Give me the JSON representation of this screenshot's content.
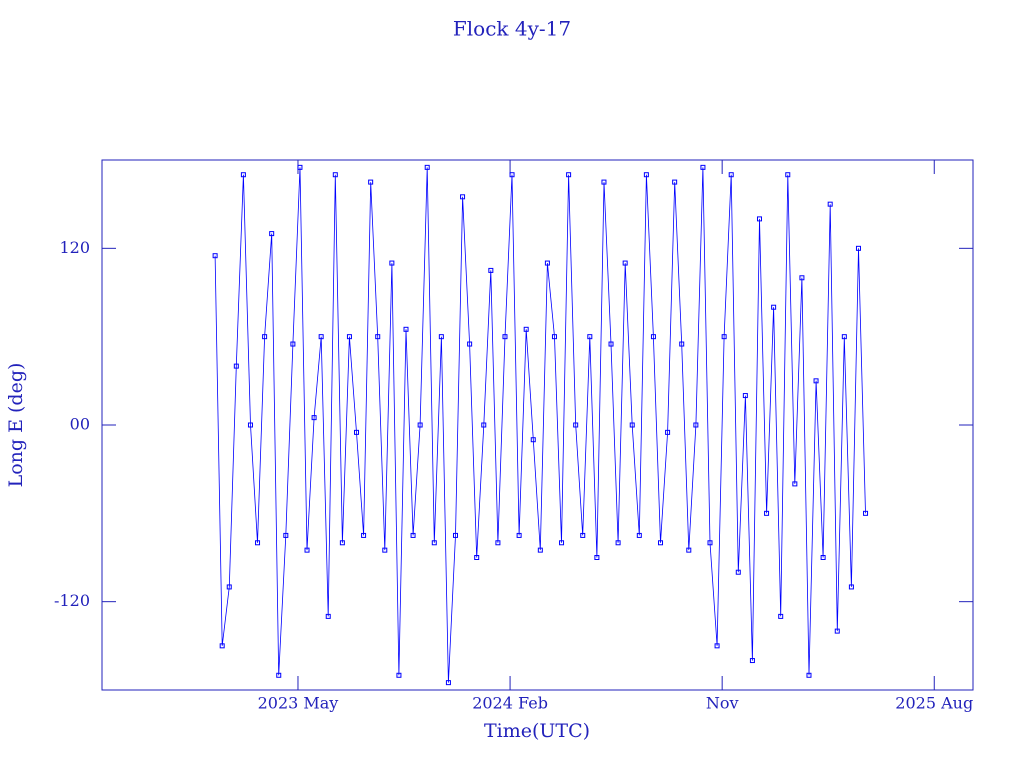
{
  "chart_data": {
    "type": "line",
    "title": "Flock 4y-17",
    "x_label": "Time(UTC)",
    "y_label": "Long E (deg)",
    "xlim": [
      2022.64,
      2025.72
    ],
    "xticks": [
      {
        "value": 2023.333,
        "label": "2023 May"
      },
      {
        "value": 2024.083,
        "label": "2024 Feb"
      },
      {
        "value": 2024.833,
        "label": "Nov"
      },
      {
        "value": 2025.583,
        "label": "2025 Aug"
      }
    ],
    "ylim": [
      -180,
      180
    ],
    "yticks": [
      -120,
      {
        "value": 0,
        "label": "00"
      },
      120
    ],
    "color": "#0000ff",
    "x": [
      2023.04,
      2023.065,
      2023.09,
      2023.115,
      2023.14,
      2023.165,
      2023.19,
      2023.215,
      2023.24,
      2023.265,
      2023.29,
      2023.315,
      2023.34,
      2023.365,
      2023.39,
      2023.415,
      2023.44,
      2023.465,
      2023.49,
      2023.515,
      2023.54,
      2023.565,
      2023.59,
      2023.615,
      2023.64,
      2023.665,
      2023.69,
      2023.715,
      2023.74,
      2023.765,
      2023.79,
      2023.815,
      2023.84,
      2023.865,
      2023.89,
      2023.915,
      2023.94,
      2023.965,
      2023.99,
      2024.015,
      2024.04,
      2024.065,
      2024.09,
      2024.115,
      2024.14,
      2024.165,
      2024.19,
      2024.215,
      2024.24,
      2024.265,
      2024.29,
      2024.315,
      2024.34,
      2024.365,
      2024.39,
      2024.415,
      2024.44,
      2024.465,
      2024.49,
      2024.515,
      2024.54,
      2024.565,
      2024.59,
      2024.615,
      2024.64,
      2024.665,
      2024.69,
      2024.715,
      2024.74,
      2024.765,
      2024.79,
      2024.815,
      2024.84,
      2024.865,
      2024.89,
      2024.915,
      2024.94,
      2024.965,
      2024.99,
      2025.015,
      2025.04,
      2025.065,
      2025.09,
      2025.115,
      2025.14,
      2025.165,
      2025.19,
      2025.215,
      2025.24,
      2025.265,
      2025.29,
      2025.315,
      2025.34
    ],
    "values": [
      115,
      -150,
      -110,
      40,
      170,
      0,
      -80,
      60,
      130,
      -170,
      -75,
      55,
      175,
      -85,
      5,
      60,
      -130,
      170,
      -80,
      60,
      -5,
      -75,
      165,
      60,
      -85,
      110,
      -170,
      65,
      -75,
      0,
      175,
      -80,
      60,
      -175,
      -75,
      155,
      55,
      -90,
      0,
      105,
      -80,
      60,
      170,
      -75,
      65,
      -10,
      -85,
      110,
      60,
      -80,
      170,
      0,
      -75,
      60,
      -90,
      165,
      55,
      -80,
      110,
      0,
      -75,
      170,
      60,
      -80,
      -5,
      165,
      55,
      -85,
      0,
      175,
      -80,
      -150,
      60,
      170,
      -100,
      20,
      -160,
      140,
      -60,
      80,
      -130,
      170,
      -40,
      100,
      -170,
      30,
      -90,
      150,
      -140,
      60,
      -110,
      120,
      -60
    ]
  }
}
